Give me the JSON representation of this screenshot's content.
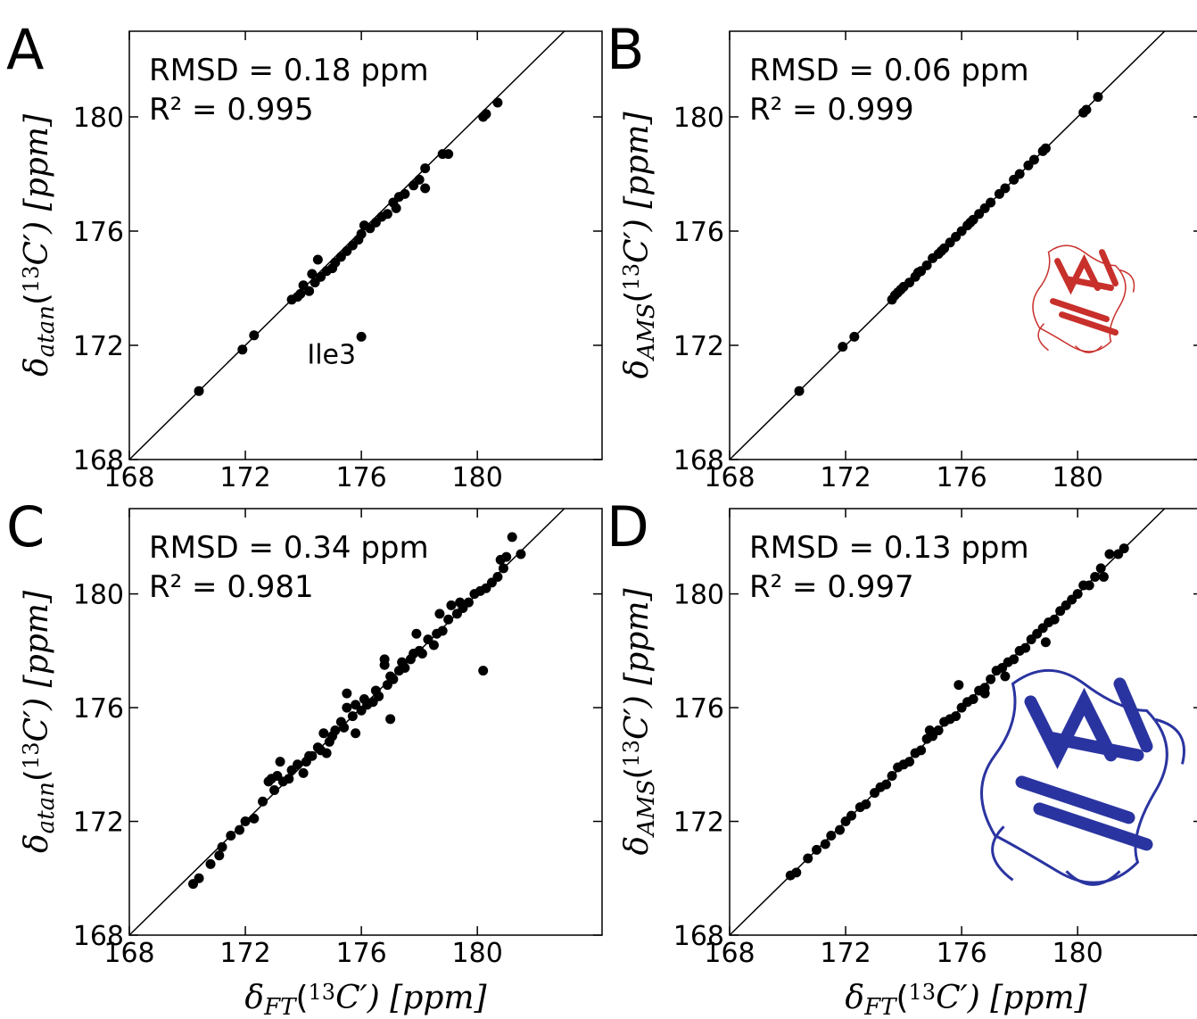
{
  "chart_data": [
    {
      "type": "scatter",
      "panel": "A",
      "stats": [
        "RMSD = 0.18 ppm",
        "R² = 0.995"
      ],
      "ylabel": [
        {
          "text": "δ"
        },
        {
          "text": "atan",
          "sub": true
        },
        {
          "text": "("
        },
        {
          "text": "13",
          "sup": true
        },
        {
          "text": "C′) [ppm]"
        }
      ],
      "xlim": [
        168,
        184.3
      ],
      "ylim": [
        168,
        183
      ],
      "xticks": [
        168,
        172,
        176,
        180
      ],
      "yticks": [
        168,
        172,
        176,
        180
      ],
      "diagonal": true,
      "annotations": [
        {
          "text": "Ile3",
          "x": 176,
          "y": 172.3
        }
      ],
      "series": [
        {
          "color": "#000000",
          "x": [
            170.4,
            171.9,
            172.3,
            176,
            173.6,
            173.8,
            173.9,
            174,
            174.2,
            174.4,
            174.5,
            174.6,
            174.8,
            175,
            175.3,
            175.5,
            175.7,
            175.9,
            176.1,
            176.3,
            176.5,
            176.7,
            176.9,
            177.1,
            177.3,
            177.2,
            177.5,
            177.8,
            178,
            178.2,
            178.2,
            178.8,
            179,
            180.2,
            180.3,
            180.7,
            174.3,
            175.1,
            176
          ],
          "y": [
            170.4,
            171.85,
            172.35,
            172.3,
            173.6,
            173.7,
            173.8,
            174.1,
            173.9,
            174.2,
            175,
            174.4,
            174.6,
            174.7,
            175.1,
            175.3,
            175.5,
            175.7,
            176.2,
            176.1,
            176.3,
            176.5,
            176.6,
            177,
            177.2,
            176.8,
            177.3,
            177.6,
            177.8,
            178.2,
            177.5,
            178.7,
            178.7,
            180,
            180.1,
            180.5,
            174.5,
            174.9,
            175.9
          ]
        }
      ]
    },
    {
      "type": "scatter",
      "panel": "B",
      "stats": [
        "RMSD = 0.06 ppm",
        "R² = 0.999"
      ],
      "ylabel": [
        {
          "text": "δ"
        },
        {
          "text": "AMS",
          "sub": true
        },
        {
          "text": "("
        },
        {
          "text": "13",
          "sup": true
        },
        {
          "text": "C′) [ppm]"
        }
      ],
      "xlim": [
        168,
        184.3
      ],
      "ylim": [
        168,
        183
      ],
      "xticks": [
        168,
        172,
        176,
        180
      ],
      "yticks": [
        168,
        172,
        176,
        180
      ],
      "diagonal": true,
      "protein": "#c8302c",
      "series": [
        {
          "color": "#000000",
          "x": [
            170.4,
            171.9,
            172.3,
            173.6,
            173.7,
            173.8,
            173.9,
            174,
            174.2,
            174.4,
            174.6,
            174.8,
            175,
            175.2,
            175.4,
            175.6,
            175.8,
            176,
            176.2,
            176.4,
            176.6,
            176.8,
            177,
            177.3,
            177.5,
            177.8,
            178,
            178.3,
            178.5,
            178.8,
            178.9,
            180.2,
            180.3,
            180.7,
            174.5,
            175.3,
            176.3
          ],
          "y": [
            170.4,
            171.95,
            172.3,
            173.6,
            173.75,
            173.85,
            173.95,
            174.05,
            174.2,
            174.4,
            174.6,
            174.8,
            175.05,
            175.2,
            175.4,
            175.6,
            175.8,
            176,
            176.2,
            176.4,
            176.6,
            176.8,
            177,
            177.3,
            177.5,
            177.8,
            178,
            178.3,
            178.5,
            178.8,
            178.9,
            180.15,
            180.25,
            180.7,
            174.55,
            175.3,
            176.3
          ]
        }
      ]
    },
    {
      "type": "scatter",
      "panel": "C",
      "stats": [
        "RMSD = 0.34 ppm",
        "R² = 0.981"
      ],
      "xlabel": [
        {
          "text": "δ"
        },
        {
          "text": "FT",
          "sub": true
        },
        {
          "text": "("
        },
        {
          "text": "13",
          "sup": true
        },
        {
          "text": "C′) [ppm]"
        }
      ],
      "ylabel": [
        {
          "text": "δ"
        },
        {
          "text": "atan",
          "sub": true
        },
        {
          "text": "("
        },
        {
          "text": "13",
          "sup": true
        },
        {
          "text": "C′) [ppm]"
        }
      ],
      "xlim": [
        168,
        184.3
      ],
      "ylim": [
        168,
        183
      ],
      "xticks": [
        168,
        172,
        176,
        180
      ],
      "yticks": [
        168,
        172,
        176,
        180
      ],
      "diagonal": true,
      "series": [
        {
          "color": "#000000",
          "x": [
            170.2,
            170.4,
            170.8,
            171.1,
            171.2,
            171.5,
            171.8,
            172,
            172.3,
            172.6,
            172.8,
            173,
            173.1,
            173.3,
            173.5,
            173.6,
            173.8,
            174,
            174.1,
            174.3,
            174.5,
            174.6,
            174.7,
            174.9,
            175,
            175.1,
            175.3,
            175.4,
            175.5,
            175.7,
            175.8,
            176,
            176.1,
            176.2,
            176.4,
            176.5,
            176.6,
            176.8,
            176.9,
            177,
            177.1,
            177.3,
            177.4,
            177.5,
            177.7,
            177.8,
            178,
            178.1,
            178.3,
            178.5,
            178.6,
            178.8,
            179,
            179.1,
            179.3,
            179.5,
            179.7,
            179.9,
            180.1,
            180.3,
            180.5,
            180.7,
            180.8,
            181,
            181.2,
            181.5,
            180.2,
            177,
            175.8,
            173.2,
            174.8,
            176.8,
            177.9,
            175.5,
            172.9,
            174.2,
            178.7,
            179.4,
            180.9
          ],
          "y": [
            169.8,
            170,
            170.5,
            170.8,
            171.1,
            171.5,
            171.7,
            172,
            172.1,
            172.7,
            173.4,
            173.1,
            173.6,
            173.4,
            173.5,
            173.8,
            174,
            173.7,
            174.1,
            174.3,
            174.6,
            174.5,
            175.1,
            174.8,
            175,
            175.2,
            175.5,
            175.3,
            176,
            175.7,
            176.1,
            175.9,
            176.3,
            176.1,
            176.2,
            176.6,
            176.4,
            177.5,
            176.8,
            177.1,
            177,
            177.3,
            177.6,
            177.4,
            177.7,
            177.9,
            178,
            177.9,
            178.4,
            178.2,
            178.6,
            178.7,
            179.1,
            179.6,
            179.3,
            179.5,
            179.7,
            180,
            180.1,
            180.2,
            180.4,
            180.6,
            181.2,
            181.3,
            182,
            181.4,
            177.3,
            175.6,
            175.1,
            174.1,
            174.4,
            177.7,
            178.6,
            176.5,
            173.5,
            174.3,
            179.3,
            179.7,
            180.9
          ]
        }
      ]
    },
    {
      "type": "scatter",
      "panel": "D",
      "stats": [
        "RMSD = 0.13 ppm",
        "R² = 0.997"
      ],
      "xlabel": [
        {
          "text": "δ"
        },
        {
          "text": "FT",
          "sub": true
        },
        {
          "text": "("
        },
        {
          "text": "13",
          "sup": true
        },
        {
          "text": "C′) [ppm]"
        }
      ],
      "ylabel": [
        {
          "text": "δ"
        },
        {
          "text": "AMS",
          "sub": true
        },
        {
          "text": "("
        },
        {
          "text": "13",
          "sup": true
        },
        {
          "text": "C′) [ppm]"
        }
      ],
      "xlim": [
        168,
        184.3
      ],
      "ylim": [
        168,
        183
      ],
      "xticks": [
        168,
        172,
        176,
        180
      ],
      "yticks": [
        168,
        172,
        176,
        180
      ],
      "diagonal": true,
      "protein": "#2a34a0",
      "series": [
        {
          "color": "#000000",
          "x": [
            170.1,
            170.3,
            170.7,
            171,
            171.3,
            171.5,
            171.8,
            172,
            172.2,
            172.5,
            172.7,
            173,
            173.2,
            173.4,
            173.6,
            173.8,
            174,
            174.2,
            174.4,
            174.6,
            174.8,
            175,
            175.2,
            175.4,
            175.6,
            175.8,
            176,
            176.2,
            176.4,
            176.6,
            176.8,
            177,
            177.2,
            177.4,
            177.6,
            177.8,
            178,
            178.2,
            178.4,
            178.6,
            178.8,
            179,
            179.2,
            179.4,
            179.6,
            179.8,
            180,
            180.2,
            180.4,
            180.6,
            180.8,
            181.1,
            181.4,
            181.6,
            175.9,
            176.8,
            178.9,
            174.9,
            177.5,
            180.9
          ],
          "y": [
            170.1,
            170.2,
            170.7,
            171,
            171.2,
            171.5,
            171.7,
            172,
            172.2,
            172.5,
            172.6,
            173,
            173.2,
            173.3,
            173.6,
            173.9,
            174,
            174.1,
            174.4,
            174.5,
            174.9,
            175,
            175.2,
            175.5,
            175.6,
            175.7,
            176,
            176.2,
            176.3,
            176.6,
            176.7,
            177,
            177.3,
            177.4,
            177.6,
            177.7,
            178,
            178.1,
            178.4,
            178.6,
            178.8,
            179,
            179.1,
            179.4,
            179.6,
            179.8,
            180,
            180.3,
            180.3,
            180.6,
            180.9,
            181.4,
            181.4,
            181.6,
            176.8,
            176.5,
            178.3,
            175.2,
            177.1,
            180.6
          ]
        }
      ]
    }
  ]
}
